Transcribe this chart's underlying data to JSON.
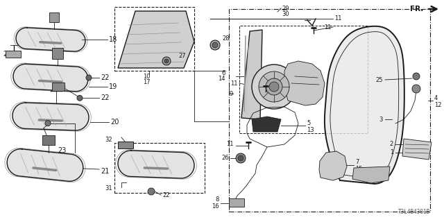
{
  "bg_color": "#ffffff",
  "line_color": "#1a1a1a",
  "diagram_id": "T3L4B4301B",
  "fig_width": 6.4,
  "fig_height": 3.2,
  "dpi": 100,
  "gray_fill": "#cccccc",
  "dark_fill": "#555555",
  "med_fill": "#888888",
  "light_fill": "#e8e8e8",
  "border_color": "#444444"
}
